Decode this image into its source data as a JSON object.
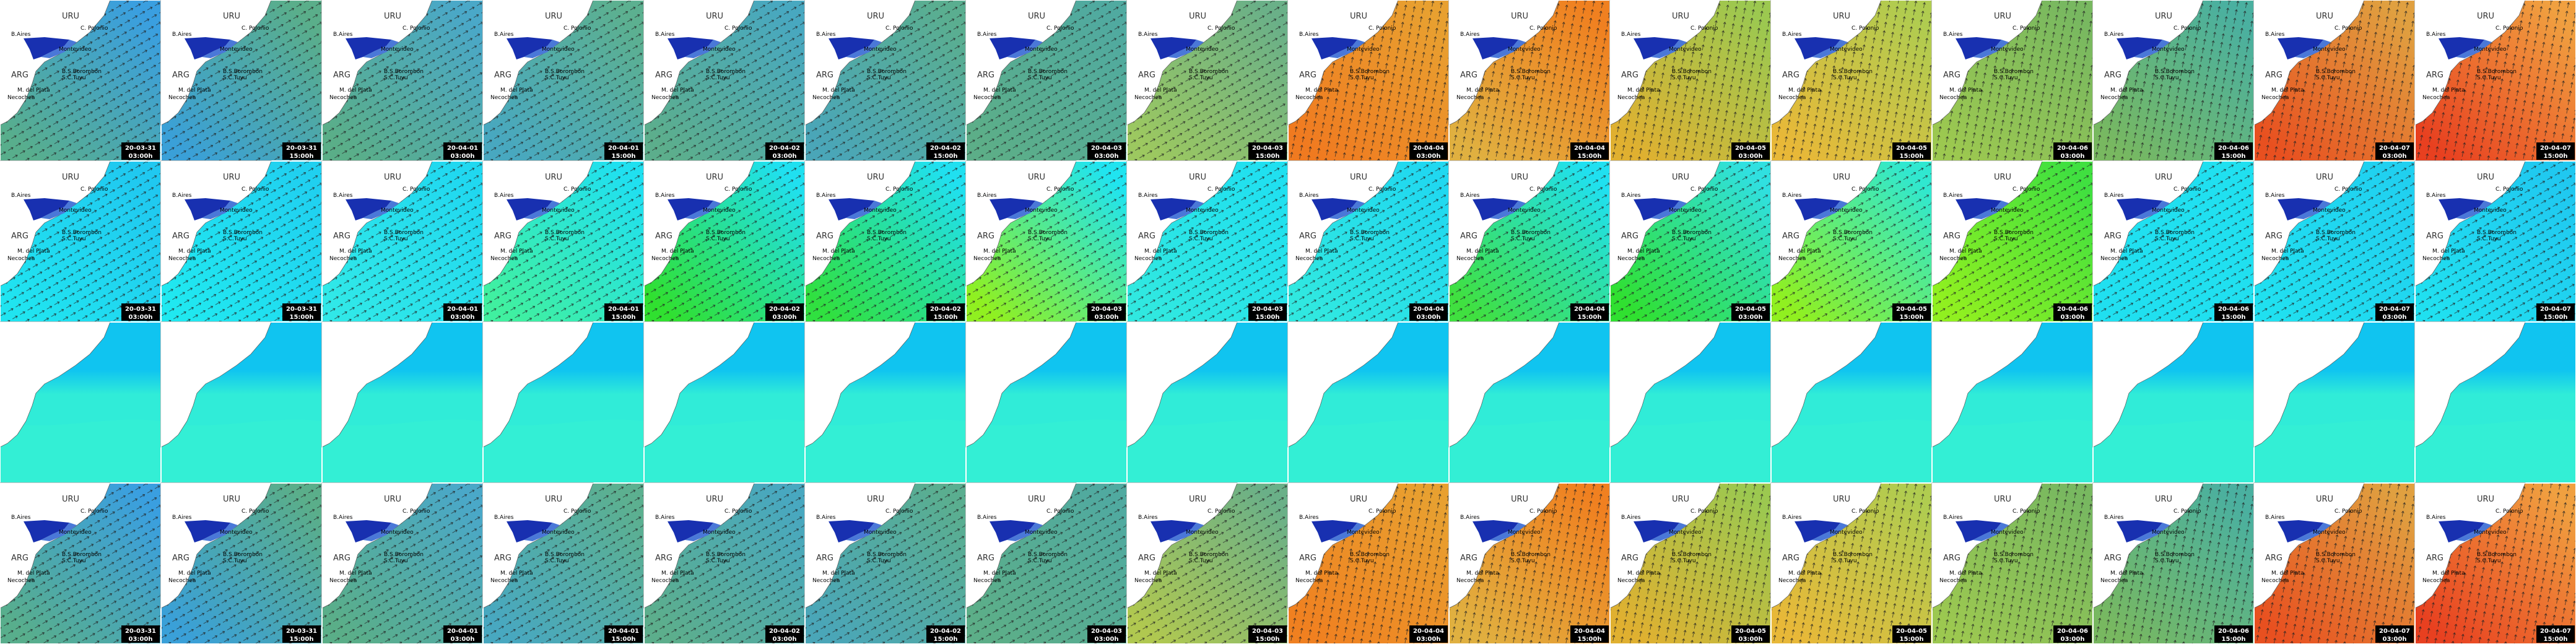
{
  "map_labels": {
    "country_north": "URU",
    "cape": "C. Polonio",
    "capital_west": "B.Aires",
    "capital_east": "Montevideo",
    "country_south": "ARG",
    "bay": "B.S.Borombon",
    "coast_town": "S.C.Tuyu",
    "city_south": "M. del Plata",
    "city_far_south": "Necochea"
  },
  "timestamps": [
    {
      "date": "20-03-31",
      "time": "03:00h"
    },
    {
      "date": "20-03-31",
      "time": "15:00h"
    },
    {
      "date": "20-04-01",
      "time": "03:00h"
    },
    {
      "date": "20-04-01",
      "time": "15:00h"
    },
    {
      "date": "20-04-02",
      "time": "03:00h"
    },
    {
      "date": "20-04-02",
      "time": "15:00h"
    },
    {
      "date": "20-04-03",
      "time": "03:00h"
    },
    {
      "date": "20-04-03",
      "time": "15:00h"
    },
    {
      "date": "20-04-04",
      "time": "03:00h"
    },
    {
      "date": "20-04-04",
      "time": "15:00h"
    },
    {
      "date": "20-04-05",
      "time": "03:00h"
    },
    {
      "date": "20-04-05",
      "time": "15:00h"
    },
    {
      "date": "20-04-06",
      "time": "03:00h"
    },
    {
      "date": "20-04-06",
      "time": "15:00h"
    },
    {
      "date": "20-04-07",
      "time": "03:00h"
    },
    {
      "date": "20-04-07",
      "time": "15:00h"
    }
  ]
}
